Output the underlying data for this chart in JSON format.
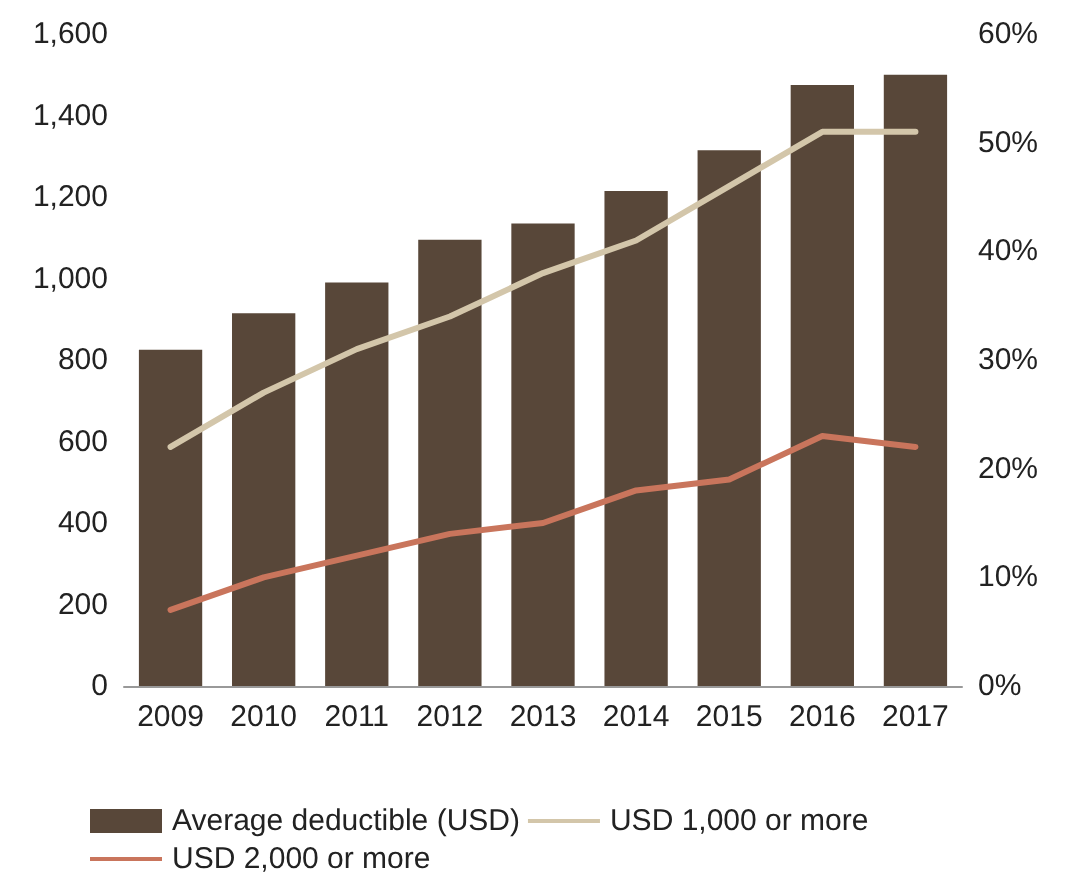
{
  "chart_data": {
    "type": "bar",
    "categories": [
      "2009",
      "2010",
      "2011",
      "2012",
      "2013",
      "2014",
      "2015",
      "2016",
      "2017"
    ],
    "series": [
      {
        "name": "Average deductible (USD)",
        "color": "#584739",
        "values": [
          825,
          915,
          990,
          1095,
          1135,
          1215,
          1315,
          1475,
          1500
        ]
      },
      {
        "name": "USD 1,000 or more",
        "type": "line",
        "axis": "y2",
        "color": "#d3c6aa",
        "values": [
          22,
          27,
          31,
          34,
          38,
          41,
          46,
          51,
          51
        ]
      },
      {
        "name": "USD 2,000 or more",
        "type": "line",
        "axis": "y2",
        "color": "#c9755c",
        "values": [
          7,
          10,
          12,
          14,
          15,
          18,
          19,
          23,
          22
        ]
      }
    ],
    "ylim": [
      0,
      1600
    ],
    "yticks": [
      {
        "value": 0,
        "label": "0"
      },
      {
        "value": 200,
        "label": "200"
      },
      {
        "value": 400,
        "label": "400"
      },
      {
        "value": 600,
        "label": "600"
      },
      {
        "value": 800,
        "label": "800"
      },
      {
        "value": 1000,
        "label": "1,000"
      },
      {
        "value": 1200,
        "label": "1,200"
      },
      {
        "value": 1400,
        "label": "1,400"
      },
      {
        "value": 1600,
        "label": "1,600"
      }
    ],
    "y2lim": [
      0,
      60
    ],
    "y2ticks": [
      {
        "value": 0,
        "label": "0%"
      },
      {
        "value": 10,
        "label": "10%"
      },
      {
        "value": 20,
        "label": "20%"
      },
      {
        "value": 30,
        "label": "30%"
      },
      {
        "value": 40,
        "label": "40%"
      },
      {
        "value": 50,
        "label": "50%"
      },
      {
        "value": 60,
        "label": "60%"
      }
    ],
    "marker": "none",
    "line_style": "solid",
    "grid": false,
    "legend": "bottom"
  }
}
